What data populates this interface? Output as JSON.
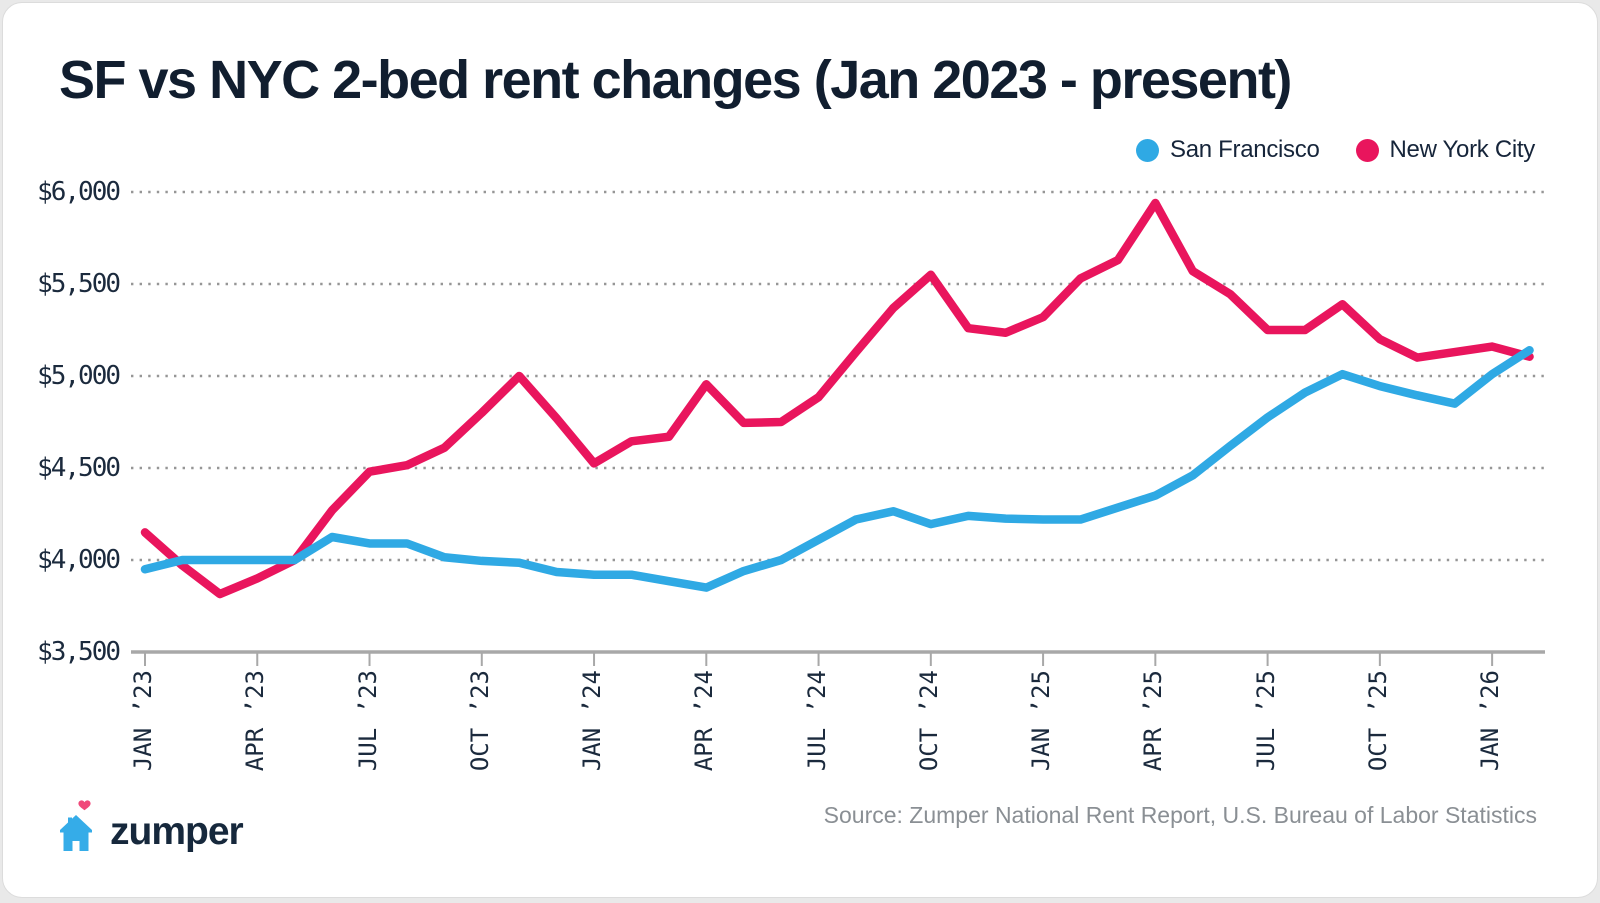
{
  "title": "SF vs NYC 2-bed rent changes (Jan 2023 - present)",
  "legend": {
    "items": [
      {
        "label": "San Francisco",
        "color": "#2fa9e4"
      },
      {
        "label": "New York City",
        "color": "#e9155d"
      }
    ]
  },
  "footer": {
    "logo_text": "zumper",
    "source": "Source: Zumper National Rent Report, U.S. Bureau of Labor Statistics"
  },
  "icons": {
    "house_icon_color": "#35ace8",
    "heart_icon_color": "#f0497a"
  },
  "colors": {
    "title_text": "#111e2f",
    "axis_label_text": "#1b2a3d",
    "gridline": "#969696",
    "axis_line": "#a8a8a8",
    "source_text": "#8a8f94",
    "background": "#ffffff"
  },
  "chart_data": {
    "type": "line",
    "title": "SF vs NYC 2-bed rent changes (Jan 2023 - present)",
    "ylim": [
      3500,
      6000
    ],
    "y_tick_labels": [
      "$3,500",
      "$4,000",
      "$4,500",
      "$5,000",
      "$5,500",
      "$6,000"
    ],
    "y_tick_values": [
      3500,
      4000,
      4500,
      5000,
      5500,
      6000
    ],
    "grid": "horizontal dotted, no vertical grid, solid bottom axis with quarterly tick marks",
    "legend_position": "top-right",
    "x_tick_labels": [
      "JAN ’23",
      "APR ’23",
      "JUL ’23",
      "OCT ’23",
      "JAN ’24",
      "APR ’24",
      "JUL ’24",
      "OCT ’24",
      "JAN ’25",
      "APR ’25",
      "JUL ’25",
      "OCT ’25",
      "JAN ’26"
    ],
    "x_tick_month_indices": [
      0,
      3,
      6,
      9,
      12,
      15,
      18,
      21,
      24,
      27,
      30,
      33,
      36
    ],
    "months": [
      "Jan 2023",
      "Feb 2023",
      "Mar 2023",
      "Apr 2023",
      "May 2023",
      "Jun 2023",
      "Jul 2023",
      "Aug 2023",
      "Sep 2023",
      "Oct 2023",
      "Nov 2023",
      "Dec 2023",
      "Jan 2024",
      "Feb 2024",
      "Mar 2024",
      "Apr 2024",
      "May 2024",
      "Jun 2024",
      "Jul 2024",
      "Aug 2024",
      "Sep 2024",
      "Oct 2024",
      "Nov 2024",
      "Dec 2024",
      "Jan 2025",
      "Feb 2025",
      "Mar 2025",
      "Apr 2025",
      "May 2025",
      "Jun 2025",
      "Jul 2025",
      "Aug 2025",
      "Sep 2025",
      "Oct 2025",
      "Nov 2025",
      "Dec 2025",
      "Jan 2026",
      "Feb 2026"
    ],
    "series": [
      {
        "name": "New York City",
        "color": "#e9155d",
        "values": [
          4150,
          3970,
          3815,
          3900,
          4000,
          4270,
          4480,
          4515,
          4610,
          4800,
          5000,
          4770,
          4525,
          4645,
          4670,
          4955,
          4745,
          4750,
          4885,
          5130,
          5370,
          5550,
          5260,
          5235,
          5320,
          5530,
          5630,
          5940,
          5570,
          5445,
          5250,
          5250,
          5390,
          5200,
          5100,
          5130,
          5160,
          5105
        ]
      },
      {
        "name": "San Francisco",
        "color": "#2fa9e4",
        "values": [
          3950,
          4000,
          4000,
          4000,
          4000,
          4125,
          4090,
          4090,
          4015,
          3995,
          3985,
          3935,
          3920,
          3920,
          3885,
          3850,
          3940,
          4000,
          4110,
          4220,
          4265,
          4195,
          4240,
          4225,
          4220,
          4220,
          4285,
          4350,
          4460,
          4620,
          4775,
          4910,
          5010,
          4945,
          4895,
          4850,
          5010,
          5140
        ]
      }
    ]
  }
}
